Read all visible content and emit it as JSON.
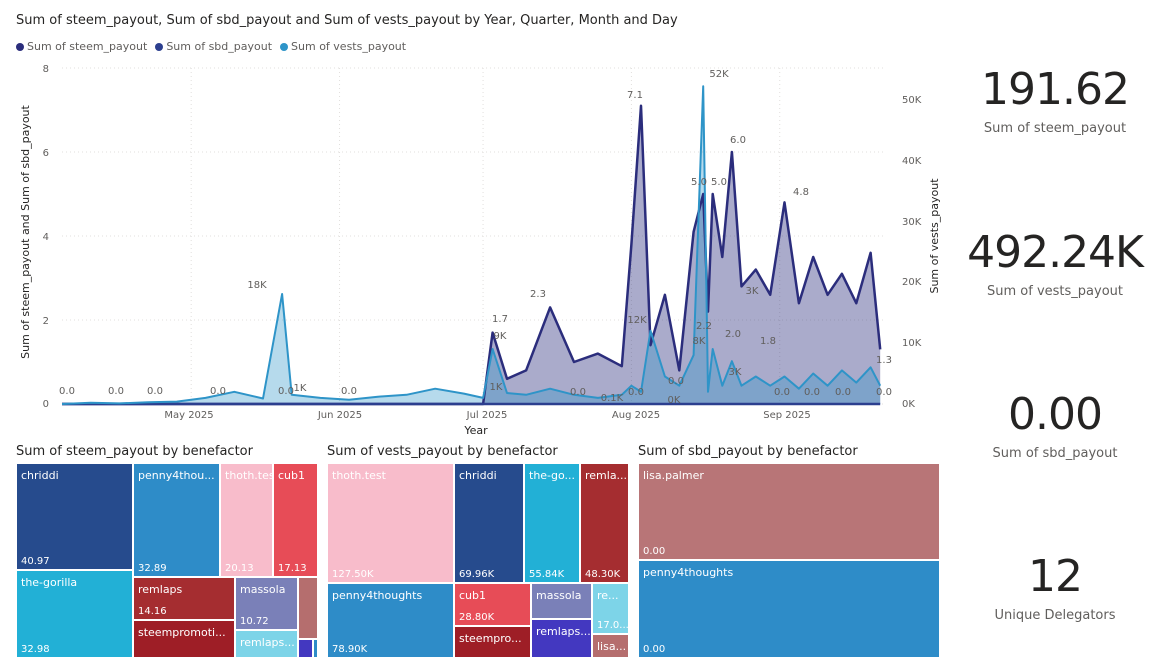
{
  "line_chart": {
    "title": "Sum of steem_payout, Sum of sbd_payout and Sum of vests_payout by Year, Quarter, Month and Day",
    "legend": [
      {
        "label": "Sum of steem_payout",
        "color": "#2b2d7c"
      },
      {
        "label": "Sum of sbd_payout",
        "color": "#2c3f8f"
      },
      {
        "label": "Sum of vests_payout",
        "color": "#2e94c8"
      }
    ],
    "y_left_label": "Sum of steem_payout and Sum of sbd_payout",
    "y_right_label": "Sum of vests_payout",
    "x_label": "Year",
    "y_left_ticks": [
      "0",
      "2",
      "4",
      "6",
      "8"
    ],
    "y_right_ticks": [
      "0K",
      "10K",
      "20K",
      "30K",
      "40K",
      "50K"
    ],
    "x_ticks": [
      "May 2025",
      "Jun 2025",
      "Jul 2025",
      "Aug 2025",
      "Sep 2025"
    ],
    "data_labels": [
      "0.0",
      "0.0",
      "0.0",
      "0.0",
      "18K",
      "0.0",
      "1K",
      "0.0",
      "1.7",
      "9K",
      "2.3",
      "1K",
      "7.1",
      "12K",
      "0.1K",
      "0.0",
      "0.0",
      "0K",
      "8K",
      "2.2",
      "5.0",
      "5.0",
      "52K",
      "6.0",
      "2.0",
      "3K",
      "1.8",
      "4.8",
      "0.0",
      "0.0",
      "1.3",
      "0.0",
      "0.0",
      "3K",
      "0.0"
    ]
  },
  "chart_data": {
    "type": "area",
    "x": [
      "2025-04-04",
      "2025-04-10",
      "2025-04-16",
      "2025-04-22",
      "2025-04-28",
      "2025-05-04",
      "2025-05-10",
      "2025-05-16",
      "2025-05-20",
      "2025-05-22",
      "2025-05-28",
      "2025-06-03",
      "2025-06-09",
      "2025-06-15",
      "2025-06-21",
      "2025-06-27",
      "2025-07-01",
      "2025-07-03",
      "2025-07-06",
      "2025-07-10",
      "2025-07-15",
      "2025-07-20",
      "2025-07-25",
      "2025-07-30",
      "2025-08-01",
      "2025-08-03",
      "2025-08-05",
      "2025-08-08",
      "2025-08-11",
      "2025-08-14",
      "2025-08-16",
      "2025-08-17",
      "2025-08-18",
      "2025-08-20",
      "2025-08-22",
      "2025-08-24",
      "2025-08-27",
      "2025-08-30",
      "2025-09-02",
      "2025-09-05",
      "2025-09-08",
      "2025-09-11",
      "2025-09-14",
      "2025-09-17",
      "2025-09-20",
      "2025-09-22"
    ],
    "series": [
      {
        "name": "Sum of steem_payout",
        "axis": "left",
        "values": [
          0.0,
          0.0,
          0.0,
          0.0,
          0.0,
          0.0,
          0.0,
          0.0,
          0.0,
          0.0,
          0.0,
          0.0,
          0.0,
          0.0,
          0.0,
          0.0,
          0.0,
          1.7,
          0.6,
          0.8,
          2.3,
          1.0,
          1.2,
          0.9,
          3.8,
          7.1,
          1.4,
          2.6,
          0.8,
          4.1,
          5.0,
          2.2,
          5.0,
          3.5,
          6.0,
          2.8,
          3.2,
          2.6,
          4.8,
          2.4,
          3.5,
          2.6,
          3.1,
          2.4,
          3.6,
          1.3
        ]
      },
      {
        "name": "Sum of sbd_payout",
        "axis": "left",
        "values": [
          0,
          0,
          0,
          0,
          0,
          0,
          0,
          0,
          0,
          0,
          0,
          0,
          0,
          0,
          0,
          0,
          0,
          0,
          0,
          0,
          0,
          0,
          0,
          0,
          0,
          0,
          0,
          0,
          0,
          0,
          0,
          0,
          0,
          0,
          0,
          0,
          0,
          0,
          0,
          0,
          0,
          0,
          0,
          0,
          0,
          0
        ]
      },
      {
        "name": "Sum of vests_payout",
        "axis": "right",
        "values": [
          0,
          200,
          100,
          300,
          400,
          1000,
          2000,
          900,
          18000,
          1500,
          1000,
          700,
          1200,
          1500,
          2500,
          1700,
          1000,
          9000,
          1800,
          1500,
          2500,
          1500,
          1000,
          1500,
          3000,
          2000,
          12000,
          4500,
          3000,
          8000,
          52000,
          2000,
          9000,
          3000,
          7000,
          3000,
          4500,
          3000,
          4500,
          2500,
          5000,
          3000,
          5500,
          3500,
          6000,
          3000
        ]
      }
    ],
    "ylim_left": [
      0,
      8
    ],
    "ylim_right": [
      0,
      55000
    ],
    "xlim": [
      "2025-04-04",
      "2025-09-23"
    ],
    "grid": true,
    "legend_position": "top-left"
  },
  "cards": [
    {
      "value": "191.62",
      "label": "Sum of steem_payout"
    },
    {
      "value": "492.24K",
      "label": "Sum of vests_payout"
    },
    {
      "value": "0.00",
      "label": "Sum of sbd_payout"
    },
    {
      "value": "12",
      "label": "Unique Delegators"
    }
  ],
  "treemaps": [
    {
      "title": "Sum of steem_payout by benefactor",
      "tiles": [
        {
          "name": "chriddi",
          "value": "40.97",
          "color": "#264b8d"
        },
        {
          "name": "penny4thou...",
          "value": "32.89",
          "color": "#2e8cc8"
        },
        {
          "name": "thoth.test",
          "value": "20.13",
          "color": "#f8bccb"
        },
        {
          "name": "cub1",
          "value": "17.13",
          "color": "#e74c57"
        },
        {
          "name": "the-gorilla",
          "value": "32.98",
          "color": "#22b0d6"
        },
        {
          "name": "remlaps",
          "value": "14.16",
          "color": "#a52d30"
        },
        {
          "name": "massola",
          "value": "10.72",
          "color": "#7a80b8"
        },
        {
          "name": "",
          "value": "",
          "color": "#b56e6e"
        },
        {
          "name": "steempromoti...",
          "value": "",
          "color": "#9e1e26"
        },
        {
          "name": "remlaps...",
          "value": "",
          "color": "#7dd4e8"
        },
        {
          "name": "",
          "value": "",
          "color": "#4338c0"
        },
        {
          "name": "",
          "value": "",
          "color": "#2e8cc8"
        }
      ]
    },
    {
      "title": "Sum of vests_payout by benefactor",
      "tiles": [
        {
          "name": "thoth.test",
          "value": "127.50K",
          "color": "#f8bccb"
        },
        {
          "name": "chriddi",
          "value": "69.96K",
          "color": "#264b8d"
        },
        {
          "name": "the-go...",
          "value": "55.84K",
          "color": "#22b0d6"
        },
        {
          "name": "remla...",
          "value": "48.30K",
          "color": "#a52d30"
        },
        {
          "name": "penny4thoughts",
          "value": "78.90K",
          "color": "#2e8cc8"
        },
        {
          "name": "cub1",
          "value": "28.80K",
          "color": "#e74c57"
        },
        {
          "name": "massola",
          "value": "",
          "color": "#7a80b8"
        },
        {
          "name": "re...",
          "value": "17.0...",
          "color": "#7dd4e8"
        },
        {
          "name": "steempro...",
          "value": "",
          "color": "#9e1e26"
        },
        {
          "name": "remlaps...",
          "value": "",
          "color": "#4338c0"
        },
        {
          "name": "lisa...",
          "value": "",
          "color": "#b56e6e"
        }
      ]
    },
    {
      "title": "Sum of sbd_payout by benefactor",
      "tiles": [
        {
          "name": "lisa.palmer",
          "value": "0.00",
          "color": "#b87577"
        },
        {
          "name": "penny4thoughts",
          "value": "0.00",
          "color": "#2e8cc8"
        }
      ]
    }
  ]
}
